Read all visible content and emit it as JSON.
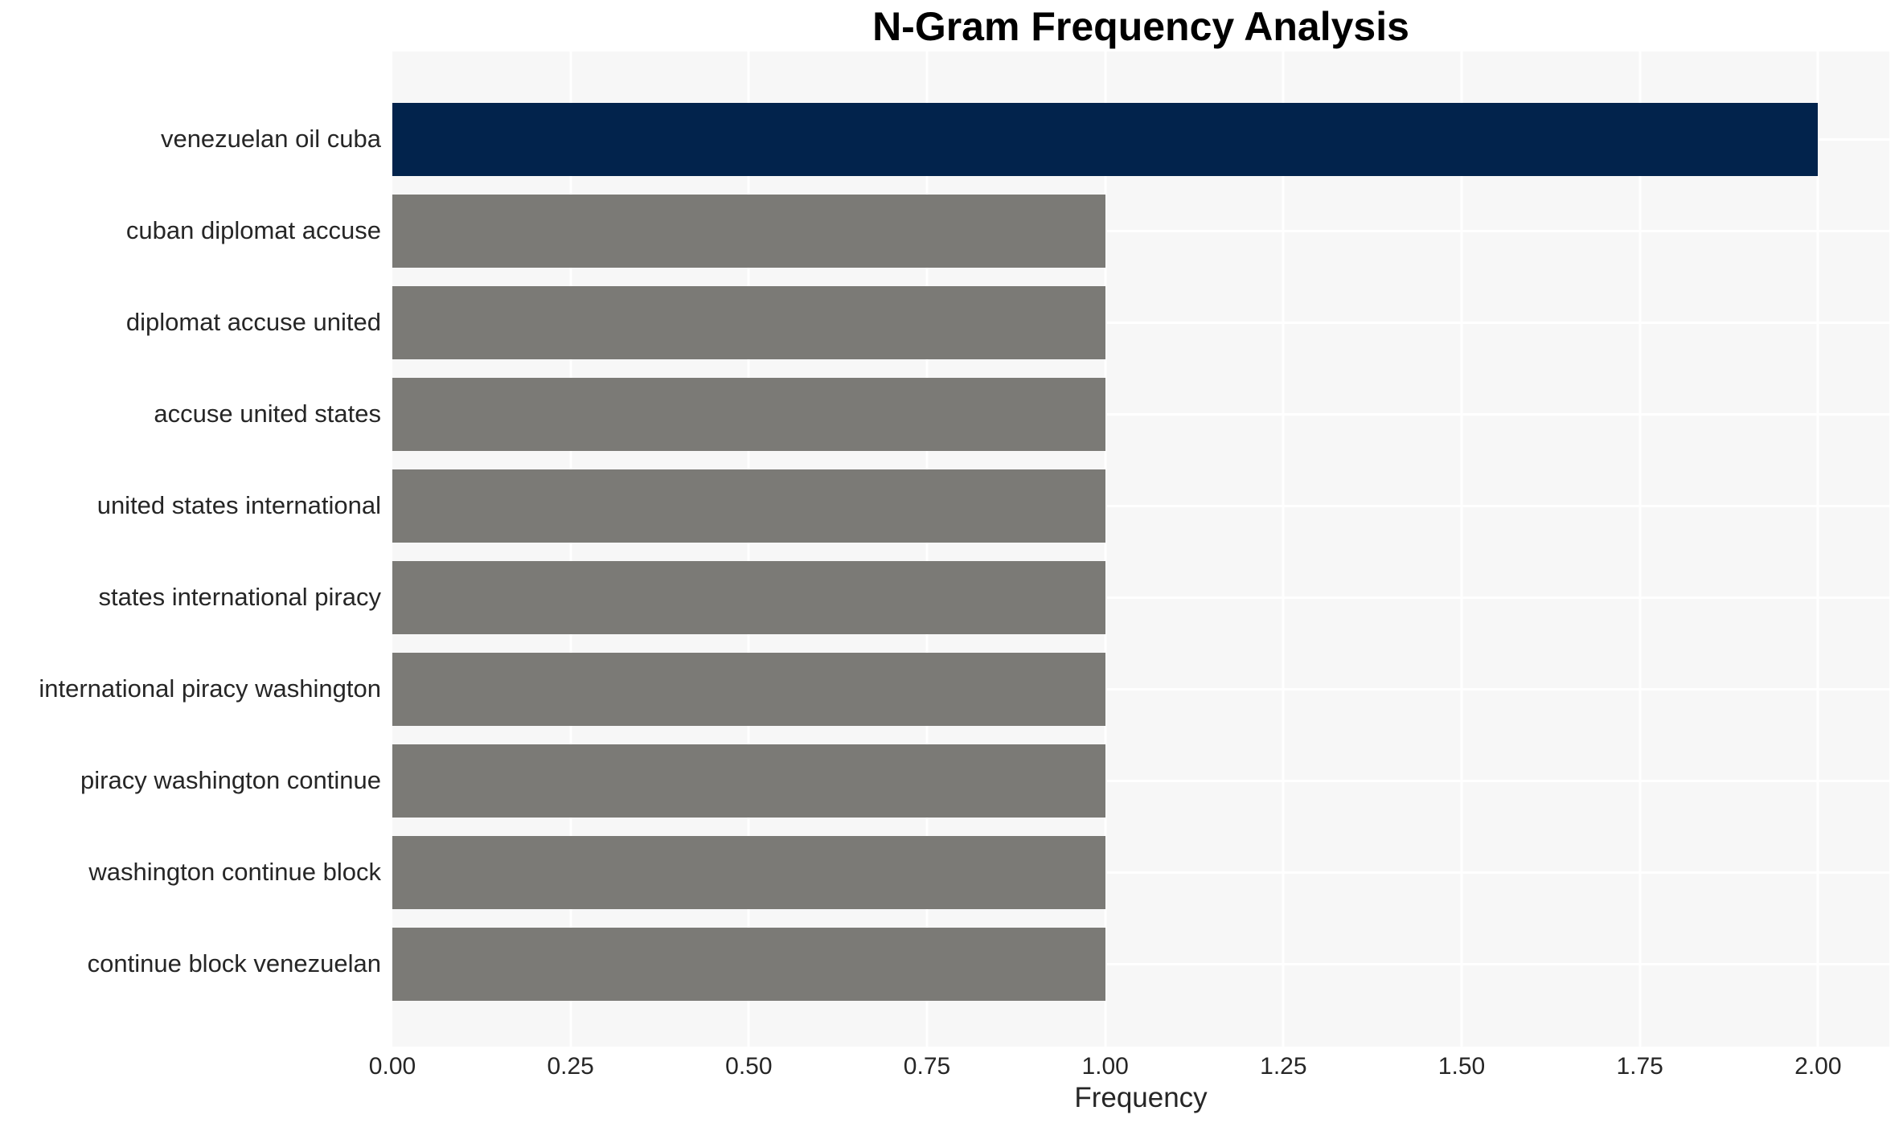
{
  "title": "N-Gram Frequency Analysis",
  "colors": {
    "highlight_bar": "#02234c",
    "default_bar": "#7b7a76",
    "plot_background": "#f7f7f7",
    "gridline": "#ffffff",
    "text": "#262626",
    "title_text": "#000000",
    "page_background": "#ffffff"
  },
  "chart_data": {
    "type": "bar",
    "orientation": "horizontal",
    "title": "N-Gram Frequency Analysis",
    "xlabel": "Frequency",
    "ylabel": "",
    "categories": [
      "venezuelan oil cuba",
      "cuban diplomat accuse",
      "diplomat accuse united",
      "accuse united states",
      "united states international",
      "states international piracy",
      "international piracy washington",
      "piracy washington continue",
      "washington continue block",
      "continue block venezuelan"
    ],
    "values": [
      2,
      1,
      1,
      1,
      1,
      1,
      1,
      1,
      1,
      1
    ],
    "bar_colors": [
      "#02234c",
      "#7b7a76",
      "#7b7a76",
      "#7b7a76",
      "#7b7a76",
      "#7b7a76",
      "#7b7a76",
      "#7b7a76",
      "#7b7a76",
      "#7b7a76"
    ],
    "xlim": [
      0,
      2.1
    ],
    "xticks": [
      {
        "value": 0.0,
        "label": "0.00"
      },
      {
        "value": 0.25,
        "label": "0.25"
      },
      {
        "value": 0.5,
        "label": "0.50"
      },
      {
        "value": 0.75,
        "label": "0.75"
      },
      {
        "value": 1.0,
        "label": "1.00"
      },
      {
        "value": 1.25,
        "label": "1.25"
      },
      {
        "value": 1.5,
        "label": "1.50"
      },
      {
        "value": 1.75,
        "label": "1.75"
      },
      {
        "value": 2.0,
        "label": "2.00"
      }
    ],
    "grid": true,
    "legend": "none"
  }
}
